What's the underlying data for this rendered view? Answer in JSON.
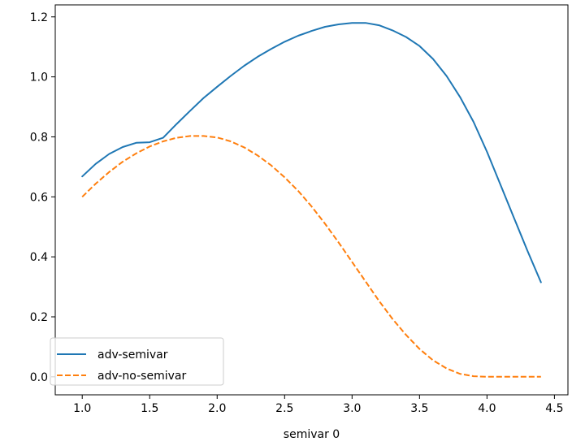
{
  "chart_data": {
    "type": "line",
    "title": "",
    "xlabel": "semivar 0",
    "ylabel": "",
    "xlim": [
      0.8,
      4.6
    ],
    "ylim": [
      -0.06,
      1.24
    ],
    "xticks": [
      1.0,
      1.5,
      2.0,
      2.5,
      3.0,
      3.5,
      4.0,
      4.5
    ],
    "xtick_labels": [
      "1.0",
      "1.5",
      "2.0",
      "2.5",
      "3.0",
      "3.5",
      "4.0",
      "4.5"
    ],
    "yticks": [
      0.0,
      0.2,
      0.4,
      0.6,
      0.8,
      1.0,
      1.2
    ],
    "ytick_labels": [
      "0.0",
      "0.2",
      "0.4",
      "0.6",
      "0.8",
      "1.0",
      "1.2"
    ],
    "grid": false,
    "legend_position": "lower-left",
    "series": [
      {
        "name": "adv-semivar",
        "color": "#1f77b4",
        "dash": "solid",
        "x": [
          1.0,
          1.1,
          1.2,
          1.3,
          1.4,
          1.5,
          1.6,
          1.7,
          1.8,
          1.9,
          2.0,
          2.1,
          2.2,
          2.3,
          2.4,
          2.5,
          2.6,
          2.7,
          2.8,
          2.9,
          3.0,
          3.1,
          3.2,
          3.3,
          3.4,
          3.5,
          3.6,
          3.7,
          3.8,
          3.9,
          4.0,
          4.1,
          4.2,
          4.3,
          4.4
        ],
        "y": [
          0.668,
          0.71,
          0.743,
          0.766,
          0.78,
          0.782,
          0.797,
          0.843,
          0.887,
          0.93,
          0.967,
          1.003,
          1.037,
          1.067,
          1.093,
          1.117,
          1.137,
          1.153,
          1.167,
          1.175,
          1.18,
          1.18,
          1.172,
          1.155,
          1.133,
          1.103,
          1.06,
          1.003,
          0.933,
          0.85,
          0.75,
          0.64,
          0.53,
          0.42,
          0.315
        ]
      },
      {
        "name": "adv-no-semivar",
        "color": "#ff7f0e",
        "dash": "dashed",
        "x": [
          1.0,
          1.1,
          1.2,
          1.3,
          1.4,
          1.5,
          1.6,
          1.7,
          1.8,
          1.9,
          2.0,
          2.1,
          2.2,
          2.3,
          2.4,
          2.5,
          2.6,
          2.7,
          2.8,
          2.9,
          3.0,
          3.1,
          3.2,
          3.3,
          3.4,
          3.5,
          3.6,
          3.7,
          3.8,
          3.9,
          4.0,
          4.1,
          4.2,
          4.3,
          4.4
        ],
        "y": [
          0.6,
          0.644,
          0.683,
          0.717,
          0.745,
          0.768,
          0.785,
          0.797,
          0.803,
          0.803,
          0.798,
          0.785,
          0.765,
          0.738,
          0.705,
          0.665,
          0.62,
          0.568,
          0.51,
          0.448,
          0.383,
          0.318,
          0.253,
          0.193,
          0.14,
          0.093,
          0.055,
          0.028,
          0.01,
          0.002,
          0.0,
          0.0,
          0.0,
          0.0,
          0.0
        ]
      }
    ]
  }
}
